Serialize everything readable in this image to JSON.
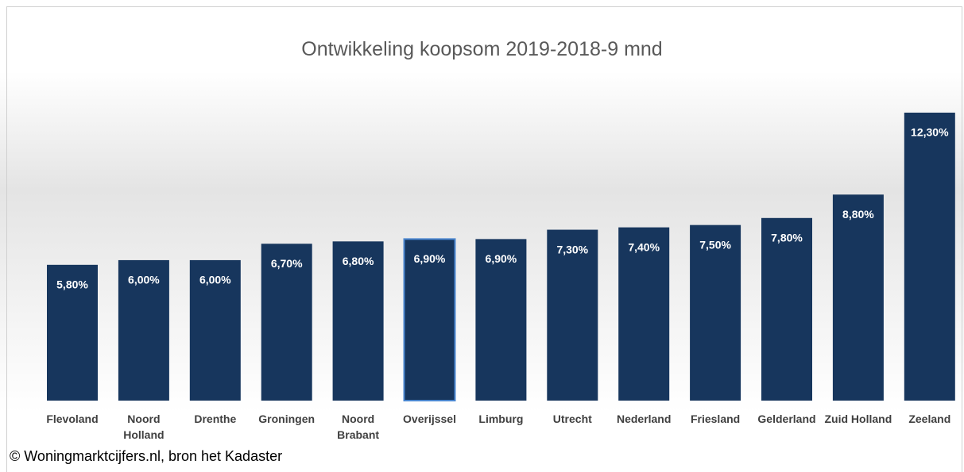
{
  "chart_data": {
    "type": "bar",
    "title": "Ontwikkeling koopsom 2019-2018-9 mnd",
    "categories": [
      "Flevoland",
      "Noord Holland",
      "Drenthe",
      "Groningen",
      "Noord Brabant",
      "Overijssel",
      "Limburg",
      "Utrecht",
      "Nederland",
      "Friesland",
      "Gelderland",
      "Zuid Holland",
      "Zeeland"
    ],
    "values": [
      5.8,
      6.0,
      6.0,
      6.7,
      6.8,
      6.9,
      6.9,
      7.3,
      7.4,
      7.5,
      7.8,
      8.8,
      12.3
    ],
    "value_labels": [
      "5,80%",
      "6,00%",
      "6,00%",
      "6,70%",
      "6,80%",
      "6,90%",
      "6,90%",
      "7,30%",
      "7,40%",
      "7,50%",
      "7,80%",
      "8,80%",
      "12,30%"
    ],
    "color": "#17365d",
    "highlight": "Overijssel",
    "highlight_color": "#4a86d0",
    "source": "© Woningmarktcijfers.nl, bron het Kadaster"
  }
}
